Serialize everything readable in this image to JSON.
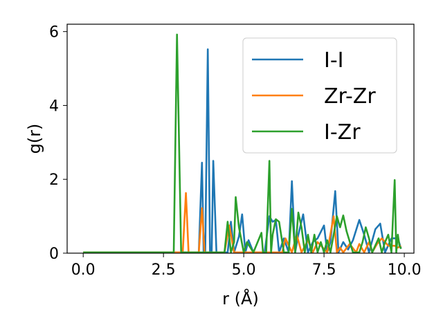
{
  "chart_data": {
    "type": "line",
    "xlabel": "r (Å)",
    "ylabel": "g(r)",
    "xlim": [
      -0.5,
      10.3
    ],
    "ylim": [
      0,
      6.2
    ],
    "xticks": [
      0.0,
      2.5,
      5.0,
      7.5,
      10.0
    ],
    "xtick_labels": [
      "0.0",
      "2.5",
      "5.0",
      "7.5",
      "10.0"
    ],
    "yticks": [
      0,
      2,
      4,
      6
    ],
    "ytick_labels": [
      "0",
      "2",
      "4",
      "6"
    ],
    "grid": false,
    "legend_position": "top-right",
    "series": [
      {
        "name": "I-I",
        "color": "#1f77b4",
        "x": [
          0.0,
          2.8,
          3.6,
          3.7,
          3.75,
          3.8,
          3.88,
          3.95,
          4.0,
          4.05,
          4.15,
          4.25,
          4.5,
          4.6,
          4.7,
          4.85,
          4.95,
          5.05,
          5.15,
          5.3,
          5.5,
          5.65,
          5.8,
          5.9,
          6.0,
          6.1,
          6.25,
          6.4,
          6.5,
          6.6,
          6.7,
          6.85,
          7.0,
          7.15,
          7.3,
          7.5,
          7.6,
          7.7,
          7.85,
          7.95,
          8.1,
          8.25,
          8.4,
          8.6,
          8.75,
          8.9,
          9.1,
          9.25,
          9.4,
          9.6,
          9.8,
          9.9
        ],
        "y": [
          0.02,
          0.02,
          0.02,
          2.45,
          0.02,
          0.02,
          5.52,
          0.02,
          0.02,
          2.5,
          0.02,
          0.02,
          0.02,
          0.85,
          0.02,
          0.45,
          1.05,
          0.02,
          0.35,
          0.02,
          0.02,
          0.02,
          1.0,
          0.85,
          0.9,
          0.02,
          0.4,
          0.02,
          1.95,
          0.02,
          0.5,
          1.05,
          0.02,
          0.3,
          0.4,
          0.75,
          0.02,
          0.3,
          1.68,
          0.02,
          0.3,
          0.1,
          0.35,
          0.9,
          0.5,
          0.02,
          0.65,
          0.8,
          0.02,
          0.4,
          0.4,
          0.12
        ]
      },
      {
        "name": "Zr-Zr",
        "color": "#ff7f0e",
        "x": [
          0.0,
          3.1,
          3.2,
          3.28,
          3.6,
          3.7,
          3.78,
          4.4,
          4.55,
          4.7,
          5.5,
          6.2,
          6.3,
          6.5,
          6.65,
          6.8,
          7.0,
          7.15,
          7.3,
          7.6,
          7.8,
          7.9,
          8.0,
          8.1,
          8.3,
          8.5,
          8.6,
          8.75,
          8.9,
          9.0,
          9.15,
          9.3,
          9.5,
          9.7,
          9.8,
          9.9
        ],
        "y": [
          0.02,
          0.02,
          1.63,
          0.02,
          0.02,
          1.22,
          0.02,
          0.02,
          0.75,
          0.02,
          0.02,
          0.02,
          0.4,
          0.02,
          0.5,
          0.02,
          0.35,
          0.02,
          0.3,
          0.02,
          1.0,
          0.02,
          0.15,
          0.02,
          0.25,
          0.02,
          0.25,
          0.02,
          0.3,
          0.02,
          0.25,
          0.4,
          0.2,
          0.2,
          0.15,
          0.2
        ]
      },
      {
        "name": "I-Zr",
        "color": "#2ca02c",
        "x": [
          0.0,
          2.82,
          2.92,
          3.05,
          3.2,
          3.4,
          4.4,
          4.5,
          4.6,
          4.7,
          4.75,
          4.85,
          5.0,
          5.1,
          5.3,
          5.55,
          5.6,
          5.7,
          5.8,
          5.85,
          5.9,
          6.0,
          6.1,
          6.25,
          6.4,
          6.5,
          6.6,
          6.7,
          6.8,
          6.9,
          7.0,
          7.1,
          7.2,
          7.3,
          7.4,
          7.5,
          7.6,
          7.7,
          7.8,
          7.9,
          8.0,
          8.1,
          8.2,
          8.4,
          8.6,
          8.7,
          8.8,
          8.9,
          9.0,
          9.2,
          9.3,
          9.4,
          9.5,
          9.6,
          9.7,
          9.75,
          9.8,
          9.85,
          9.9
        ],
        "y": [
          0.02,
          0.02,
          5.92,
          0.02,
          0.02,
          0.02,
          0.02,
          0.85,
          0.02,
          0.3,
          1.52,
          0.7,
          0.02,
          0.3,
          0.02,
          0.55,
          0.02,
          0.02,
          2.5,
          0.02,
          0.5,
          0.92,
          0.85,
          0.02,
          0.02,
          1.2,
          0.02,
          1.1,
          0.7,
          0.02,
          0.5,
          0.02,
          0.5,
          0.02,
          0.3,
          0.02,
          0.35,
          0.02,
          0.5,
          1.0,
          0.7,
          1.02,
          0.6,
          0.02,
          0.02,
          0.3,
          0.7,
          0.4,
          0.02,
          0.4,
          0.02,
          0.3,
          0.5,
          0.02,
          1.98,
          0.02,
          0.5,
          0.2,
          0.12
        ]
      }
    ]
  }
}
